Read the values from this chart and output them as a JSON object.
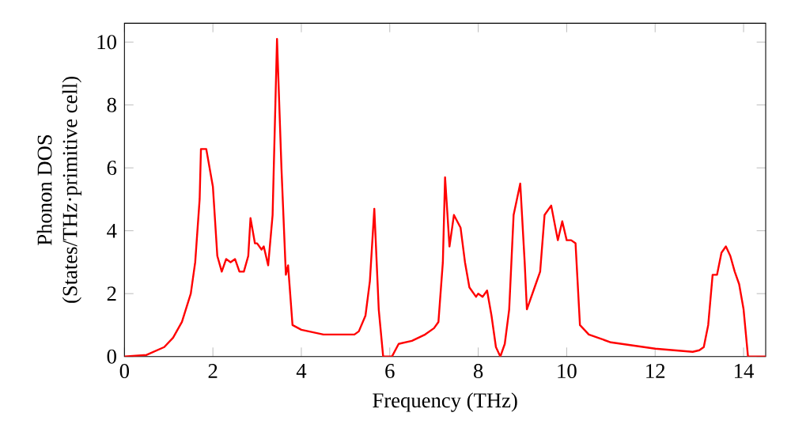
{
  "chart_data": {
    "type": "line",
    "xlabel": "Frequency (THz)",
    "ylabel": "Phonon DOS\n(States/THz·primitive cell)",
    "xlim": [
      0,
      14.5
    ],
    "ylim": [
      0,
      10.6
    ],
    "xticks": [
      0,
      2,
      4,
      6,
      8,
      10,
      12,
      14
    ],
    "yticks": [
      0,
      2,
      4,
      6,
      8,
      10
    ],
    "series": [
      {
        "color": "#ff0000",
        "x": [
          0,
          0.5,
          0.9,
          1.1,
          1.3,
          1.5,
          1.6,
          1.7,
          1.73,
          1.85,
          2.0,
          2.1,
          2.2,
          2.3,
          2.4,
          2.5,
          2.6,
          2.7,
          2.8,
          2.85,
          2.95,
          3.0,
          3.1,
          3.15,
          3.25,
          3.35,
          3.45,
          3.55,
          3.65,
          3.7,
          3.8,
          4.0,
          4.5,
          5.0,
          5.2,
          5.3,
          5.45,
          5.55,
          5.65,
          5.75,
          5.85,
          6.05,
          6.2,
          6.5,
          6.8,
          7.0,
          7.1,
          7.2,
          7.25,
          7.35,
          7.45,
          7.6,
          7.7,
          7.8,
          7.95,
          8.0,
          8.1,
          8.2,
          8.3,
          8.4,
          8.5,
          8.6,
          8.7,
          8.8,
          8.95,
          9.05,
          9.1,
          9.3,
          9.4,
          9.5,
          9.65,
          9.8,
          9.9,
          10.0,
          10.1,
          10.2,
          10.3,
          10.5,
          11,
          12,
          12.85,
          13.0,
          13.1,
          13.2,
          13.3,
          13.4,
          13.5,
          13.6,
          13.7,
          13.8,
          13.9,
          14.0,
          14.1,
          14.2,
          14.5
        ],
        "values": [
          0,
          0.05,
          0.3,
          0.6,
          1.1,
          2.0,
          3.0,
          5.0,
          6.6,
          6.6,
          5.4,
          3.2,
          2.7,
          3.1,
          3.0,
          3.1,
          2.7,
          2.7,
          3.2,
          4.4,
          3.6,
          3.6,
          3.4,
          3.5,
          2.9,
          4.5,
          10.1,
          6.0,
          2.6,
          2.9,
          1.0,
          0.85,
          0.7,
          0.7,
          0.7,
          0.8,
          1.3,
          2.4,
          4.7,
          1.5,
          0,
          0,
          0.4,
          0.5,
          0.7,
          0.9,
          1.1,
          3.0,
          5.7,
          3.5,
          4.5,
          4.1,
          3.0,
          2.2,
          1.9,
          2.0,
          1.9,
          2.1,
          1.3,
          0.3,
          0,
          0.4,
          1.5,
          4.5,
          5.5,
          3.0,
          1.5,
          2.3,
          2.7,
          4.5,
          4.8,
          3.7,
          4.3,
          3.7,
          3.7,
          3.6,
          1.0,
          0.7,
          0.45,
          0.25,
          0.15,
          0.2,
          0.3,
          1.0,
          2.6,
          2.6,
          3.3,
          3.5,
          3.2,
          2.7,
          2.3,
          1.5,
          0,
          0,
          0
        ]
      }
    ]
  }
}
